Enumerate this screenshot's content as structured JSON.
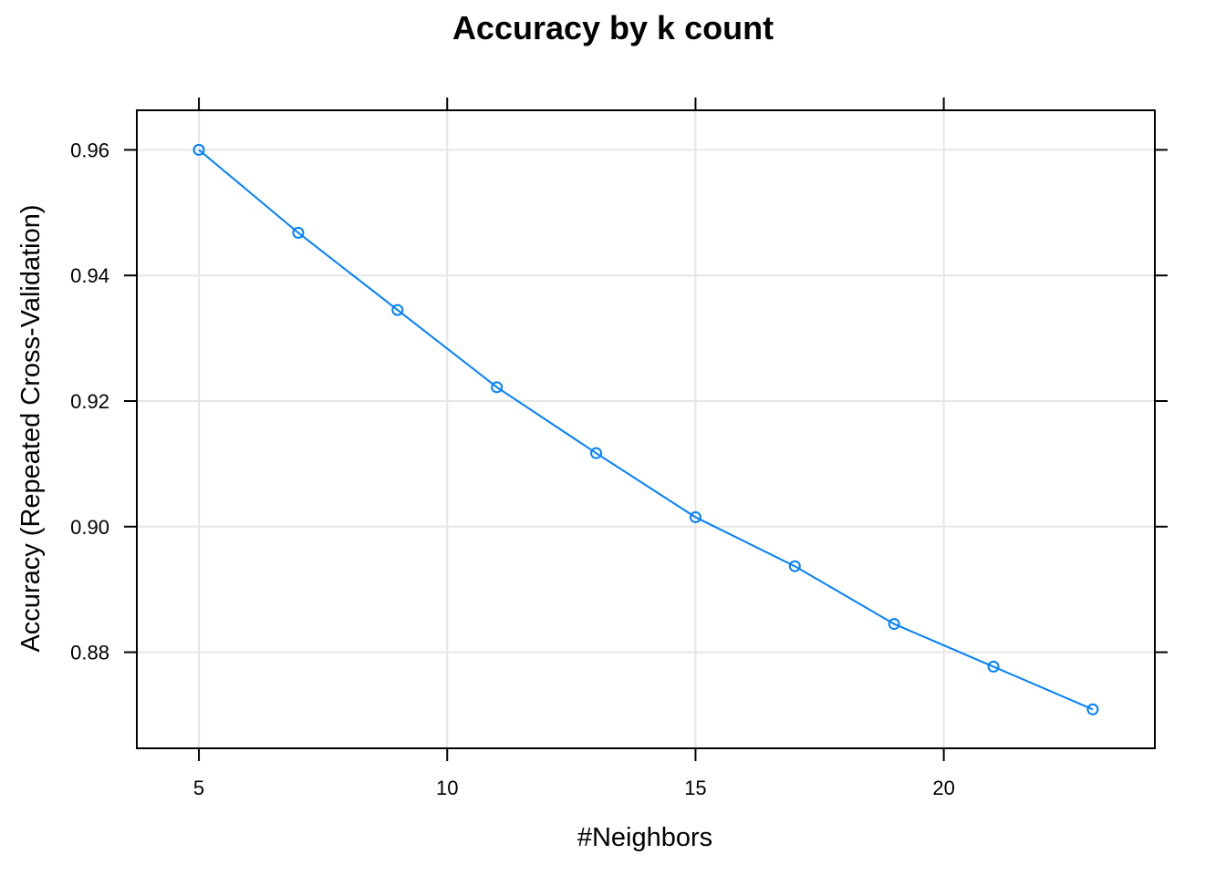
{
  "chart_data": {
    "type": "line",
    "title": "Accuracy by k count",
    "xlabel": "#Neighbors",
    "ylabel": "Accuracy (Repeated Cross-Validation)",
    "x_ticks": [
      5,
      10,
      15,
      20
    ],
    "y_ticks": [
      0.88,
      0.9,
      0.92,
      0.94,
      0.96
    ],
    "y_tick_labels": [
      "0.88",
      "0.90",
      "0.92",
      "0.94",
      "0.96"
    ],
    "xlim": [
      3.75,
      24.25
    ],
    "ylim": [
      0.8647,
      0.9663
    ],
    "grid": true,
    "series": [
      {
        "color": "#0080ff",
        "marker": "open-circle",
        "x": [
          5,
          7,
          9,
          11,
          13,
          15,
          17,
          19,
          21,
          23
        ],
        "values": [
          0.96,
          0.9468,
          0.9345,
          0.9222,
          0.9117,
          0.9015,
          0.8937,
          0.8845,
          0.8777,
          0.8709
        ]
      }
    ]
  }
}
